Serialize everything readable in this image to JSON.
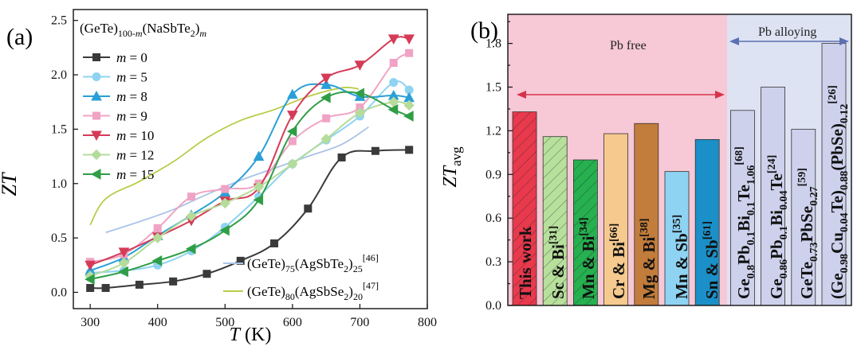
{
  "figure_labels": {
    "a": "(a)",
    "b": "(b)"
  },
  "chart_data": [
    {
      "type": "line",
      "panel": "(a)",
      "title": "",
      "xlabel": "T (K)",
      "ylabel": "ZT",
      "xlim": [
        275,
        800
      ],
      "ylim": [
        -0.15,
        2.6
      ],
      "xticks": [
        300,
        400,
        500,
        600,
        700,
        800
      ],
      "yticks": [
        0.0,
        0.5,
        1.0,
        1.5,
        2.0,
        2.5
      ],
      "xtick_labels": [
        "300",
        "400",
        "500",
        "600",
        "700",
        "800"
      ],
      "ytick_labels": [
        "0.0",
        "0.5",
        "1.0",
        "1.5",
        "2.0",
        "2.5"
      ],
      "legend_title": "(GeTe)100-m(NaSbTe2)m",
      "legend_position": "top-left",
      "series": [
        {
          "name": "m = 0",
          "color": "#3a3a3a",
          "marker": "square",
          "x": [
            300,
            323,
            373,
            423,
            473,
            523,
            573,
            623,
            673,
            723,
            773
          ],
          "y": [
            0.04,
            0.04,
            0.07,
            0.1,
            0.17,
            0.29,
            0.45,
            0.77,
            1.24,
            1.3,
            1.31
          ]
        },
        {
          "name": "m = 5",
          "color": "#8fd3f2",
          "marker": "circle",
          "x": [
            300,
            350,
            400,
            450,
            500,
            550,
            600,
            650,
            700,
            750,
            773
          ],
          "y": [
            0.18,
            0.2,
            0.25,
            0.38,
            0.6,
            0.88,
            1.18,
            1.4,
            1.62,
            1.93,
            1.86
          ]
        },
        {
          "name": "m = 8",
          "color": "#2a9fd6",
          "marker": "triangle-up",
          "x": [
            300,
            350,
            400,
            450,
            500,
            550,
            600,
            650,
            700,
            750,
            773
          ],
          "y": [
            0.2,
            0.32,
            0.52,
            0.71,
            0.92,
            1.25,
            1.82,
            1.91,
            1.8,
            1.81,
            1.79
          ]
        },
        {
          "name": "m = 9",
          "color": "#f0a3c4",
          "marker": "square",
          "x": [
            300,
            350,
            400,
            450,
            500,
            550,
            600,
            650,
            700,
            750,
            773
          ],
          "y": [
            0.28,
            0.35,
            0.59,
            0.88,
            0.95,
            1.0,
            1.39,
            1.6,
            1.7,
            2.11,
            2.2
          ]
        },
        {
          "name": "m = 10",
          "color": "#d43b57",
          "marker": "triangle-down",
          "x": [
            300,
            350,
            400,
            450,
            500,
            550,
            600,
            650,
            700,
            750,
            773
          ],
          "y": [
            0.25,
            0.37,
            0.51,
            0.66,
            0.84,
            0.96,
            1.63,
            1.97,
            2.09,
            2.33,
            2.33
          ]
        },
        {
          "name": "m = 12",
          "color": "#b5dc9a",
          "marker": "diamond",
          "x": [
            300,
            350,
            400,
            450,
            500,
            550,
            600,
            650,
            700,
            750,
            773
          ],
          "y": [
            0.15,
            0.27,
            0.5,
            0.7,
            0.82,
            0.97,
            1.18,
            1.41,
            1.65,
            1.75,
            1.72
          ]
        },
        {
          "name": "m = 15",
          "color": "#2f9e47",
          "marker": "triangle-left",
          "x": [
            300,
            350,
            400,
            450,
            500,
            550,
            600,
            650,
            700,
            750,
            773
          ],
          "y": [
            0.12,
            0.19,
            0.29,
            0.4,
            0.57,
            0.85,
            1.48,
            1.79,
            1.83,
            1.68,
            1.62
          ]
        },
        {
          "name": "(GeTe)75(AgSbTe2)25[46]",
          "color": "#aac4e6",
          "marker": "none",
          "x": [
            323,
            373,
            423,
            473,
            523,
            573,
            623,
            673,
            713
          ],
          "y": [
            0.55,
            0.65,
            0.76,
            0.9,
            1.03,
            1.14,
            1.25,
            1.36,
            1.52
          ]
        },
        {
          "name": "(GeTe)80(AgSbSe2)20[47]",
          "color": "#b9cc4a",
          "marker": "none",
          "x": [
            300,
            323,
            373,
            423,
            473,
            523,
            573,
            623,
            673,
            698
          ],
          "y": [
            0.62,
            0.86,
            1.02,
            1.2,
            1.42,
            1.58,
            1.68,
            1.8,
            1.88,
            1.87
          ]
        }
      ]
    },
    {
      "type": "bar",
      "panel": "(b)",
      "ylabel": "ZTavg",
      "ylim": [
        0,
        2.0
      ],
      "yticks": [
        0.0,
        0.3,
        0.6,
        0.9,
        1.2,
        1.5,
        1.8
      ],
      "ytick_labels": [
        "0.0",
        "0.3",
        "0.6",
        "0.9",
        "1.2",
        "1.5",
        "1.8"
      ],
      "regions": [
        {
          "label": "Pb free",
          "from_index": 0,
          "to_index": 6,
          "color": "#f7c8d6"
        },
        {
          "label": "Pb alloying",
          "from_index": 7,
          "to_index": 10,
          "color": "#dde3f3"
        }
      ],
      "bars": [
        {
          "label": "This work",
          "value": 1.33,
          "color": "#e8394d",
          "hatch": true
        },
        {
          "label": "Sc & Bi[31]",
          "value": 1.16,
          "color": "#b7e09c",
          "hatch": true
        },
        {
          "label": "Mn & Bi[34]",
          "value": 1.0,
          "color": "#26b050",
          "hatch": true
        },
        {
          "label": "Cr & Bi[66]",
          "value": 1.18,
          "color": "#f6c98e",
          "hatch": false
        },
        {
          "label": "Mg & Bi[38]",
          "value": 1.25,
          "color": "#c27c3c",
          "hatch": false
        },
        {
          "label": "Mn & Sb[35]",
          "value": 0.92,
          "color": "#8fd3f2",
          "hatch": false
        },
        {
          "label": "Sn & Sb[61]",
          "value": 1.14,
          "color": "#1b8fc7",
          "hatch": false
        },
        {
          "label": "Ge0.8Pb0.1Bi0.1Te1.06[68]",
          "value": 1.34,
          "color": "#cdd1ec",
          "hatch": false
        },
        {
          "label": "Ge0.86Pb0.1Bi0.04Te[24]",
          "value": 1.5,
          "color": "#cdd1ec",
          "hatch": false
        },
        {
          "label": "GeTe0.73PbSe0.27[59]",
          "value": 1.21,
          "color": "#cdd1ec",
          "hatch": false
        },
        {
          "label": "(Ge0.98Cu0.04Te)0.88(PbSe)0.12[26]",
          "value": 1.8,
          "color": "#cdd1ec",
          "hatch": false
        }
      ]
    }
  ]
}
